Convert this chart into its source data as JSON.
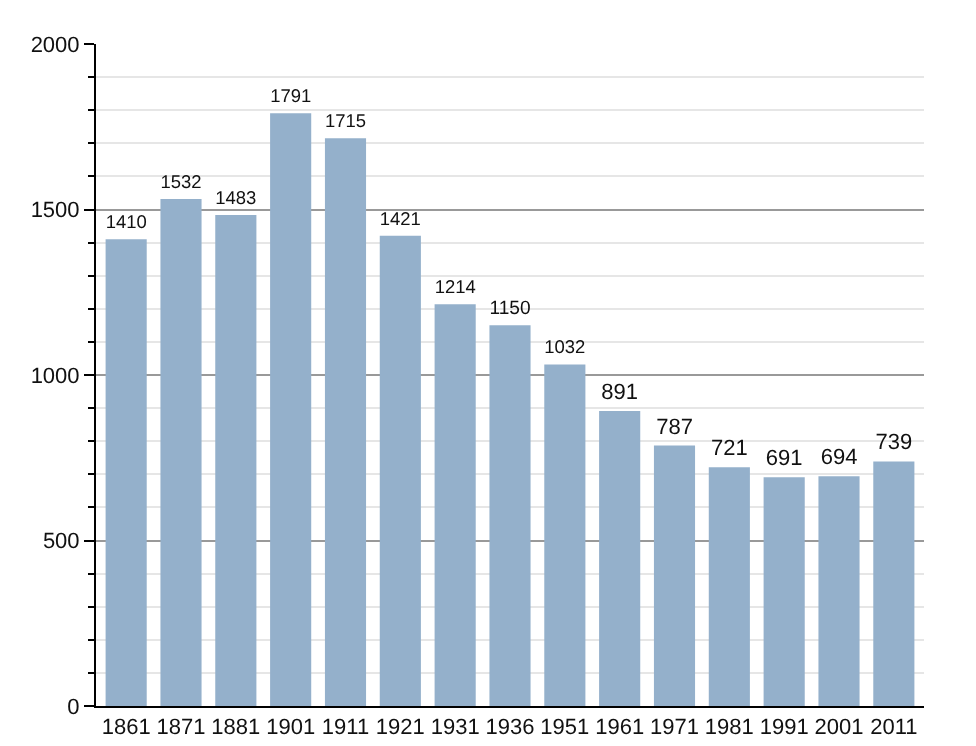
{
  "chart_data": {
    "type": "bar",
    "categories": [
      "1861",
      "1871",
      "1881",
      "1901",
      "1911",
      "1921",
      "1931",
      "1936",
      "1951",
      "1961",
      "1971",
      "1981",
      "1991",
      "2001",
      "2011"
    ],
    "values": [
      1410,
      1532,
      1483,
      1791,
      1715,
      1421,
      1214,
      1150,
      1032,
      891,
      787,
      721,
      691,
      694,
      739
    ],
    "color": "#94b0cb",
    "ylim": [
      0,
      2000
    ],
    "yticks": [
      0,
      {
        "value": 100,
        "label": null
      },
      {
        "value": 200,
        "label": null
      },
      {
        "value": 300,
        "label": null
      },
      {
        "value": 400,
        "label": null
      },
      500,
      {
        "value": 600,
        "label": null
      },
      {
        "value": 700,
        "label": null
      },
      {
        "value": 800,
        "label": null
      },
      {
        "value": 900,
        "label": null
      },
      1000,
      {
        "value": 1100,
        "label": null
      },
      {
        "value": 1200,
        "label": null
      },
      {
        "value": 1300,
        "label": null
      },
      {
        "value": 1400,
        "label": null
      },
      1500,
      {
        "value": 1600,
        "label": null
      },
      {
        "value": 1700,
        "label": null
      },
      {
        "value": 1800,
        "label": null
      },
      {
        "value": 1900,
        "label": null
      },
      2000
    ],
    "grid": true,
    "data_labels": true
  }
}
